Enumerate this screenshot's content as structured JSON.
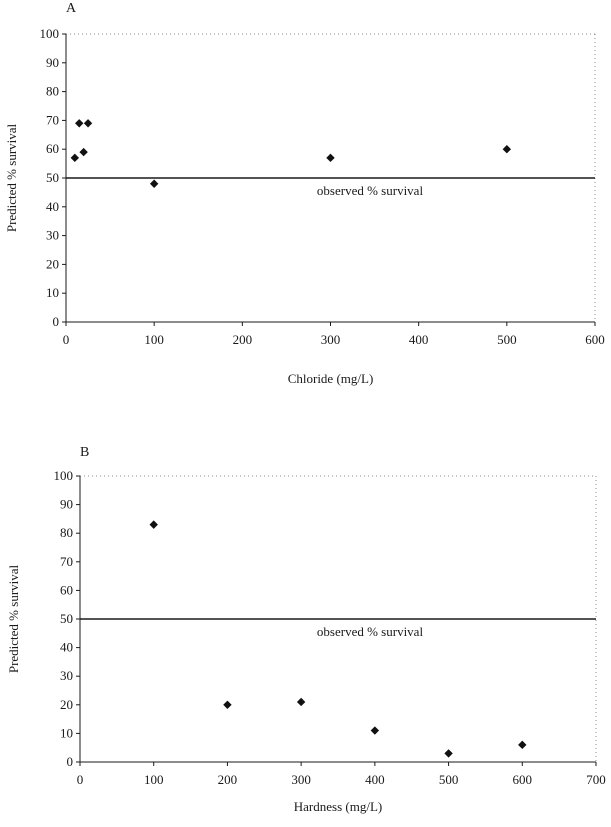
{
  "chart_data": [
    {
      "type": "scatter",
      "panel_label": "A",
      "xlabel": "Chloride (mg/L)",
      "ylabel": "Predicted % survival",
      "xlim": [
        0,
        600
      ],
      "ylim": [
        0,
        100
      ],
      "xticks": [
        "0",
        "100",
        "200",
        "300",
        "400",
        "500",
        "600"
      ],
      "yticks": [
        "0",
        "10",
        "20",
        "30",
        "40",
        "50",
        "60",
        "70",
        "80",
        "90",
        "100"
      ],
      "grid": false,
      "reference_line": {
        "y": 50,
        "label": "observed % survival"
      },
      "series": [
        {
          "points": [
            {
              "x": 10,
              "y": 57
            },
            {
              "x": 15,
              "y": 69
            },
            {
              "x": 20,
              "y": 59
            },
            {
              "x": 25,
              "y": 69
            },
            {
              "x": 100,
              "y": 48
            },
            {
              "x": 300,
              "y": 57
            },
            {
              "x": 500,
              "y": 60
            }
          ]
        }
      ]
    },
    {
      "type": "scatter",
      "panel_label": "B",
      "xlabel": "Hardness (mg/L)",
      "ylabel": "Predicted % survival",
      "xlim": [
        0,
        700
      ],
      "ylim": [
        0,
        100
      ],
      "xticks": [
        "0",
        "100",
        "200",
        "300",
        "400",
        "500",
        "600",
        "700"
      ],
      "yticks": [
        "0",
        "10",
        "20",
        "30",
        "40",
        "50",
        "60",
        "70",
        "80",
        "90",
        "100"
      ],
      "grid": false,
      "reference_line": {
        "y": 50,
        "label": "observed % survival"
      },
      "series": [
        {
          "points": [
            {
              "x": 100,
              "y": 83
            },
            {
              "x": 200,
              "y": 20
            },
            {
              "x": 300,
              "y": 21
            },
            {
              "x": 400,
              "y": 11
            },
            {
              "x": 500,
              "y": 3
            },
            {
              "x": 600,
              "y": 6
            }
          ]
        }
      ]
    }
  ]
}
